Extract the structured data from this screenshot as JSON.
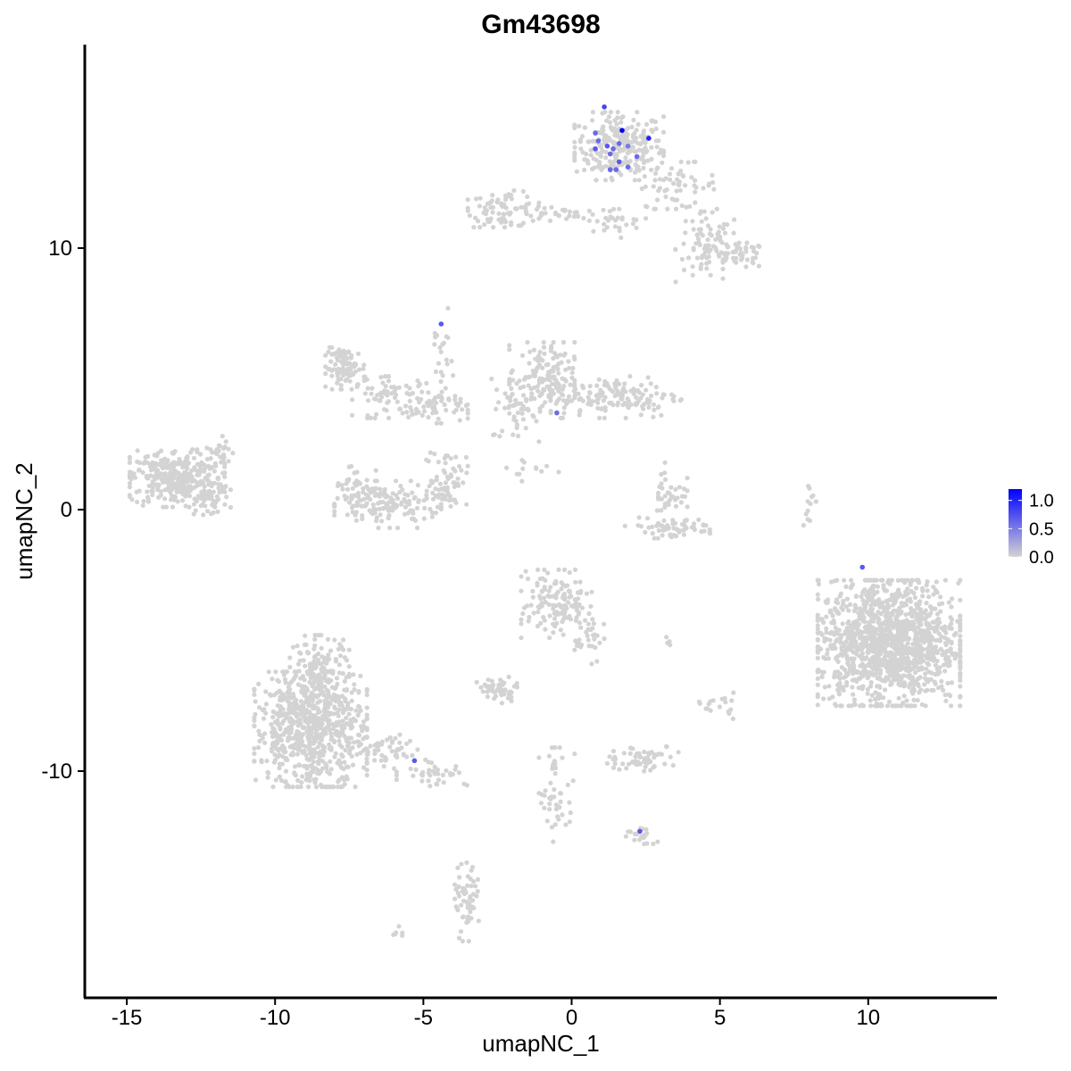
{
  "chart_data": {
    "type": "scatter",
    "title": "Gm43698",
    "xlabel": "umapNC_1",
    "ylabel": "umapNC_2",
    "xlim": [
      -16.5,
      14.5
    ],
    "ylim": [
      -18.5,
      17.5
    ],
    "x_ticks": [
      -15,
      -10,
      -5,
      0,
      5,
      10
    ],
    "x_tick_labels": [
      "-15",
      "-10",
      "-5",
      "0",
      "5",
      "10"
    ],
    "y_ticks": [
      -10,
      0,
      10
    ],
    "y_tick_labels": [
      "-10",
      "0",
      "10"
    ],
    "grid": false,
    "point_color_low": "#d3d3d3",
    "point_color_high": "#0000ff",
    "legend": {
      "position": "right",
      "range": [
        0,
        1.2
      ],
      "ticks": [
        1.0,
        0.5,
        0.0
      ],
      "tick_labels": [
        "1.0",
        "0.5",
        "0.0"
      ]
    },
    "clusters": [
      {
        "cx": 1.6,
        "cy": 13.9,
        "sx": 0.75,
        "sy": 0.65,
        "n": 260
      },
      {
        "cx": 3.5,
        "cy": 12.4,
        "sx": 0.7,
        "sy": 0.45,
        "n": 60
      },
      {
        "cx": 4.6,
        "cy": 10.0,
        "sx": 0.55,
        "sy": 0.7,
        "n": 90
      },
      {
        "cx": 5.8,
        "cy": 9.7,
        "sx": 0.35,
        "sy": 0.25,
        "n": 40
      },
      {
        "cx": -2.3,
        "cy": 11.5,
        "sx": 0.6,
        "sy": 0.35,
        "n": 80
      },
      {
        "cx": -0.6,
        "cy": 11.3,
        "sx": 0.6,
        "sy": 0.15,
        "n": 30
      },
      {
        "cx": 1.3,
        "cy": 11.0,
        "sx": 0.6,
        "sy": 0.3,
        "n": 30
      },
      {
        "cx": -13.3,
        "cy": 1.2,
        "sx": 0.8,
        "sy": 0.55,
        "n": 350
      },
      {
        "cx": -12.2,
        "cy": 0.4,
        "sx": 0.35,
        "sy": 0.3,
        "n": 40
      },
      {
        "cx": -11.8,
        "cy": 2.2,
        "sx": 0.25,
        "sy": 0.4,
        "n": 20
      },
      {
        "cx": -7.6,
        "cy": 5.4,
        "sx": 0.35,
        "sy": 0.4,
        "n": 90
      },
      {
        "cx": -6.0,
        "cy": 4.3,
        "sx": 0.7,
        "sy": 0.4,
        "n": 70
      },
      {
        "cx": -4.5,
        "cy": 3.9,
        "sx": 0.5,
        "sy": 0.3,
        "n": 50
      },
      {
        "cx": -4.4,
        "cy": 5.5,
        "sx": 0.2,
        "sy": 1.1,
        "n": 25
      },
      {
        "cx": -6.2,
        "cy": 0.2,
        "sx": 0.9,
        "sy": 0.45,
        "n": 150
      },
      {
        "cx": -4.2,
        "cy": 1.2,
        "sx": 0.35,
        "sy": 0.55,
        "n": 60
      },
      {
        "cx": -7.3,
        "cy": 0.9,
        "sx": 0.35,
        "sy": 0.5,
        "n": 40
      },
      {
        "cx": -1.0,
        "cy": 5.0,
        "sx": 0.55,
        "sy": 0.7,
        "n": 150
      },
      {
        "cx": 1.5,
        "cy": 4.3,
        "sx": 1.1,
        "sy": 0.4,
        "n": 150
      },
      {
        "cx": -1.9,
        "cy": 3.8,
        "sx": 0.4,
        "sy": 0.6,
        "n": 40
      },
      {
        "cx": -1.3,
        "cy": 1.5,
        "sx": 0.6,
        "sy": 0.25,
        "n": 12
      },
      {
        "cx": 3.3,
        "cy": 0.6,
        "sx": 0.3,
        "sy": 0.6,
        "n": 40
      },
      {
        "cx": 3.4,
        "cy": -0.7,
        "sx": 0.8,
        "sy": 0.2,
        "n": 60
      },
      {
        "cx": 8.0,
        "cy": 0.3,
        "sx": 0.12,
        "sy": 0.45,
        "n": 12
      },
      {
        "cx": 10.7,
        "cy": -5.1,
        "sx": 1.2,
        "sy": 1.2,
        "n": 1300
      },
      {
        "cx": -0.5,
        "cy": -3.6,
        "sx": 0.6,
        "sy": 0.65,
        "n": 140
      },
      {
        "cx": 0.6,
        "cy": -4.8,
        "sx": 0.25,
        "sy": 0.55,
        "n": 30
      },
      {
        "cx": -2.5,
        "cy": -6.9,
        "sx": 0.35,
        "sy": 0.25,
        "n": 50
      },
      {
        "cx": -8.8,
        "cy": -8.4,
        "sx": 0.95,
        "sy": 1.1,
        "n": 700
      },
      {
        "cx": -8.5,
        "cy": -6.2,
        "sx": 0.5,
        "sy": 0.7,
        "n": 150
      },
      {
        "cx": -6.2,
        "cy": -9.2,
        "sx": 0.6,
        "sy": 0.35,
        "n": 50
      },
      {
        "cx": -4.7,
        "cy": -10.0,
        "sx": 0.6,
        "sy": 0.3,
        "n": 40
      },
      {
        "cx": 2.4,
        "cy": -9.5,
        "sx": 0.6,
        "sy": 0.25,
        "n": 60
      },
      {
        "cx": -0.5,
        "cy": -10.9,
        "sx": 0.3,
        "sy": 0.9,
        "n": 50
      },
      {
        "cx": 2.3,
        "cy": -12.5,
        "sx": 0.3,
        "sy": 0.2,
        "n": 20
      },
      {
        "cx": -3.5,
        "cy": -15.0,
        "sx": 0.22,
        "sy": 0.75,
        "n": 60
      },
      {
        "cx": 4.9,
        "cy": -7.5,
        "sx": 0.3,
        "sy": 0.25,
        "n": 18
      },
      {
        "cx": 3.3,
        "cy": -5.0,
        "sx": 0.12,
        "sy": 0.1,
        "n": 5
      },
      {
        "cx": -5.9,
        "cy": -16.1,
        "sx": 0.15,
        "sy": 0.12,
        "n": 6
      }
    ],
    "expressed_points": [
      {
        "x": 1.1,
        "y": 15.4,
        "v": 0.8
      },
      {
        "x": 1.7,
        "y": 14.5,
        "v": 1.2
      },
      {
        "x": 2.6,
        "y": 14.2,
        "v": 1.0
      },
      {
        "x": 0.8,
        "y": 14.4,
        "v": 0.6
      },
      {
        "x": 0.9,
        "y": 14.1,
        "v": 0.6
      },
      {
        "x": 1.2,
        "y": 13.9,
        "v": 0.7
      },
      {
        "x": 1.4,
        "y": 13.8,
        "v": 0.6
      },
      {
        "x": 1.6,
        "y": 14.0,
        "v": 0.6
      },
      {
        "x": 1.9,
        "y": 13.9,
        "v": 0.5
      },
      {
        "x": 0.8,
        "y": 13.8,
        "v": 0.7
      },
      {
        "x": 1.3,
        "y": 13.6,
        "v": 0.6
      },
      {
        "x": 2.2,
        "y": 13.5,
        "v": 0.6
      },
      {
        "x": 1.6,
        "y": 13.3,
        "v": 0.7
      },
      {
        "x": 1.3,
        "y": 13.0,
        "v": 0.6
      },
      {
        "x": 1.9,
        "y": 13.1,
        "v": 0.6
      },
      {
        "x": 1.5,
        "y": 13.0,
        "v": 0.6
      },
      {
        "x": -4.4,
        "y": 7.1,
        "v": 0.7
      },
      {
        "x": -0.5,
        "y": 3.7,
        "v": 0.6
      },
      {
        "x": 9.8,
        "y": -2.2,
        "v": 0.7
      },
      {
        "x": -5.3,
        "y": -9.6,
        "v": 0.7
      },
      {
        "x": 2.3,
        "y": -12.3,
        "v": 0.7
      }
    ]
  }
}
